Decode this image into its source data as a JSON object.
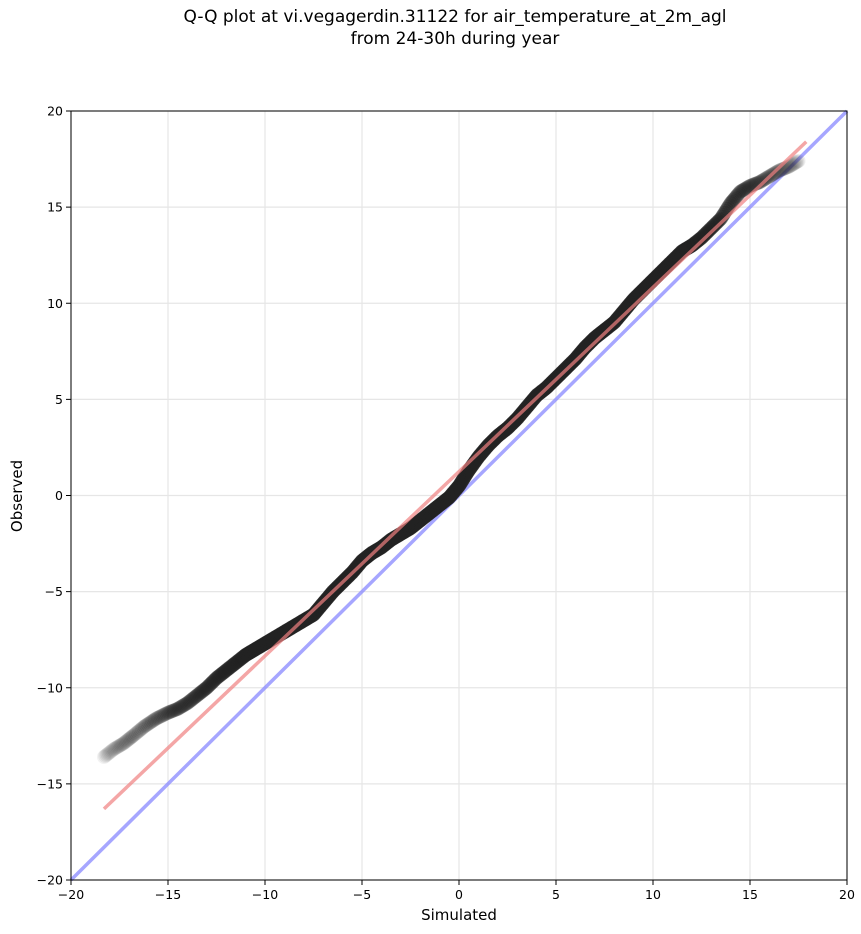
{
  "title_lines": [
    "Q-Q plot at vi.vegagerdin.31122 for air_temperature_at_2m_agl",
    "from 24-30h during year"
  ],
  "colors": {
    "points": "#222222",
    "fit_line": "#f08080",
    "identity_line": "#8888ff",
    "grid": "#e6e6e6"
  },
  "chart_data": {
    "type": "scatter",
    "title": "Q-Q plot at vi.vegagerdin.31122 for air_temperature_at_2m_agl from 24-30h during year",
    "xlabel": "Simulated",
    "ylabel": "Observed",
    "xlim": [
      -20,
      20
    ],
    "ylim": [
      -20,
      20
    ],
    "xticks": [
      -20,
      -15,
      -10,
      -5,
      0,
      5,
      10,
      15,
      20
    ],
    "yticks": [
      -20,
      -15,
      -10,
      -5,
      0,
      5,
      10,
      15,
      20
    ],
    "xtick_labels": [
      "−20",
      "−15",
      "−10",
      "−5",
      "0",
      "5",
      "10",
      "15",
      "20"
    ],
    "ytick_labels": [
      "−20",
      "−15",
      "−10",
      "−5",
      "0",
      "5",
      "10",
      "15",
      "20"
    ],
    "grid": true,
    "quantile_curve": {
      "x": [
        -18.3,
        -17.8,
        -17.3,
        -16.8,
        -16.2,
        -15.6,
        -15.0,
        -14.5,
        -14.0,
        -13.5,
        -13.0,
        -12.5,
        -12.0,
        -11.5,
        -11.0,
        -10.5,
        -10.0,
        -9.5,
        -9.0,
        -8.5,
        -8.0,
        -7.5,
        -7.0,
        -6.5,
        -6.0,
        -5.5,
        -5.0,
        -4.5,
        -4.0,
        -3.5,
        -3.0,
        -2.5,
        -2.0,
        -1.5,
        -1.0,
        -0.5,
        0.0,
        0.5,
        1.0,
        1.5,
        2.0,
        2.5,
        3.0,
        3.5,
        4.0,
        4.5,
        5.0,
        5.5,
        6.0,
        6.5,
        7.0,
        7.5,
        8.0,
        8.5,
        9.0,
        9.5,
        10.0,
        10.5,
        11.0,
        11.5,
        12.0,
        12.5,
        13.0,
        13.5,
        14.0,
        14.5,
        15.0,
        15.5,
        16.0,
        16.5,
        17.0,
        17.5
      ],
      "y": [
        -13.6,
        -13.2,
        -12.9,
        -12.5,
        -12.0,
        -11.6,
        -11.3,
        -11.1,
        -10.8,
        -10.4,
        -10.0,
        -9.5,
        -9.1,
        -8.7,
        -8.3,
        -8.0,
        -7.7,
        -7.4,
        -7.1,
        -6.8,
        -6.5,
        -6.2,
        -5.6,
        -5.0,
        -4.5,
        -4.0,
        -3.4,
        -3.0,
        -2.7,
        -2.3,
        -2.0,
        -1.7,
        -1.3,
        -0.9,
        -0.5,
        -0.1,
        0.5,
        1.3,
        2.0,
        2.6,
        3.1,
        3.5,
        4.0,
        4.6,
        5.2,
        5.6,
        6.1,
        6.6,
        7.1,
        7.7,
        8.2,
        8.6,
        9.0,
        9.6,
        10.2,
        10.7,
        11.2,
        11.7,
        12.2,
        12.7,
        13.0,
        13.4,
        13.9,
        14.4,
        15.2,
        15.8,
        16.1,
        16.3,
        16.6,
        16.9,
        17.1,
        17.4
      ]
    },
    "fit_line": {
      "x": [
        -18.3,
        17.9
      ],
      "y": [
        -16.3,
        18.4
      ]
    },
    "identity_line": {
      "x": [
        -20,
        20
      ],
      "y": [
        -20,
        20
      ]
    }
  }
}
